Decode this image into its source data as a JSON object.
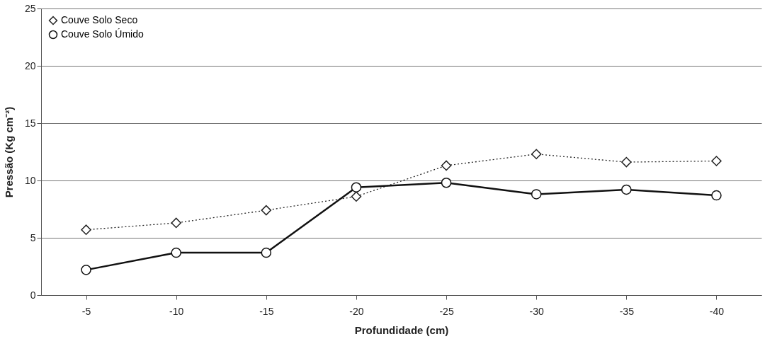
{
  "chart_data": {
    "type": "line",
    "xlabel": "Profundidade (cm)",
    "ylabel": "Pressão (Kg cm⁻²)",
    "categories": [
      "-5",
      "-10",
      "-15",
      "-20",
      "-25",
      "-30",
      "-35",
      "-40"
    ],
    "series": [
      {
        "name": "Couve Solo Seco",
        "color": "#222222",
        "marker": "diamond",
        "line_style": "dotted",
        "values": [
          5.7,
          6.3,
          7.4,
          8.6,
          11.3,
          12.3,
          11.6,
          11.7
        ]
      },
      {
        "name": "Couve Solo Úmido",
        "color": "#111111",
        "marker": "circle",
        "line_style": "solid",
        "values": [
          2.2,
          3.7,
          3.7,
          9.4,
          9.8,
          8.8,
          9.2,
          8.7
        ]
      }
    ],
    "ylim": [
      0,
      25
    ],
    "yticks": [
      0,
      5,
      10,
      15,
      20,
      25
    ],
    "grid": "y",
    "legend": "top left"
  }
}
